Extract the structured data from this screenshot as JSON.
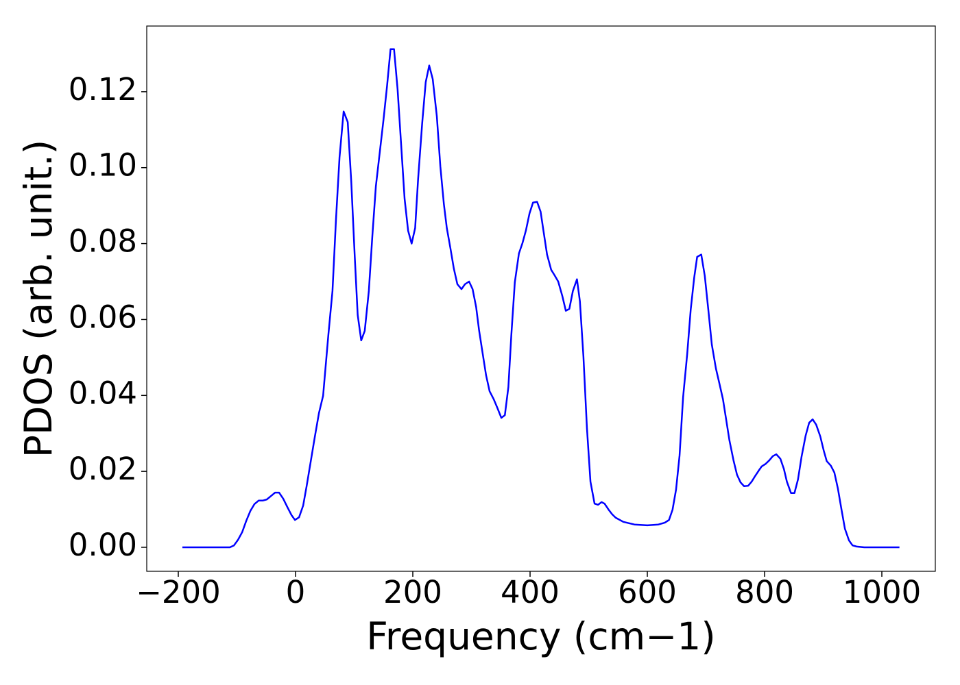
{
  "chart_data": {
    "type": "line",
    "xlabel": "Frequency (cm−1)",
    "ylabel": "PDOS (arb. unit.)",
    "xlim": [
      -253.8,
      1091.2
    ],
    "ylim": [
      -0.00632,
      0.1373
    ],
    "xticks": [
      {
        "value": -200,
        "label": "−200"
      },
      0,
      200,
      400,
      600,
      800,
      1000
    ],
    "yticks": [
      {
        "value": 0,
        "label": "0.00"
      },
      {
        "value": 0.02,
        "label": "0.02"
      },
      {
        "value": 0.04,
        "label": "0.04"
      },
      {
        "value": 0.06,
        "label": "0.06"
      },
      {
        "value": 0.08,
        "label": "0.08"
      },
      {
        "value": 0.1,
        "label": "0.10"
      },
      {
        "value": 0.12,
        "label": "0.12"
      }
    ],
    "series": [
      {
        "color": "#0000ff",
        "x": [
          -193,
          -112,
          -105,
          -98,
          -91,
          -84,
          -77,
          -70,
          -63,
          -56,
          -49,
          -42,
          -35,
          -28,
          -21,
          -14,
          -7,
          -1,
          6,
          13,
          19,
          26,
          33,
          40,
          47,
          49,
          56,
          63,
          69,
          75,
          82,
          89,
          95,
          101,
          106,
          112,
          118,
          125,
          131,
          137,
          144,
          150,
          156,
          162,
          168,
          174,
          180,
          186,
          192,
          198,
          204,
          209,
          216,
          222,
          228,
          234,
          241,
          247,
          253,
          258,
          264,
          270,
          276,
          283,
          289,
          296,
          302,
          308,
          313,
          319,
          325,
          331,
          338,
          344,
          351,
          357,
          363,
          368,
          374,
          381,
          387,
          393,
          399,
          405,
          412,
          418,
          423,
          429,
          436,
          442,
          448,
          455,
          461,
          467,
          473,
          480,
          485,
          491,
          497,
          503,
          510,
          516,
          522,
          527,
          534,
          540,
          546,
          559,
          578,
          600,
          619,
          630,
          637,
          643,
          649,
          655,
          661,
          668,
          674,
          680,
          685,
          692,
          698,
          704,
          710,
          717,
          723,
          729,
          734,
          740,
          747,
          753,
          759,
          765,
          772,
          778,
          784,
          790,
          795,
          802,
          808,
          814,
          820,
          827,
          833,
          838,
          845,
          851,
          857,
          863,
          870,
          876,
          882,
          888,
          895,
          901,
          906,
          913,
          919,
          925,
          931,
          937,
          944,
          950,
          957,
          970,
          1030
        ],
        "values": [
          0,
          0,
          0.0005,
          0.002,
          0.004,
          0.007,
          0.0096,
          0.0114,
          0.0123,
          0.0123,
          0.0126,
          0.0135,
          0.0144,
          0.0144,
          0.0128,
          0.0106,
          0.0085,
          0.0072,
          0.0079,
          0.011,
          0.0162,
          0.0227,
          0.0292,
          0.0354,
          0.0399,
          0.0435,
          0.056,
          0.0675,
          0.0864,
          0.1027,
          0.1148,
          0.112,
          0.0964,
          0.0765,
          0.0612,
          0.0545,
          0.057,
          0.0675,
          0.082,
          0.0951,
          0.1045,
          0.1126,
          0.1214,
          0.1312,
          0.1312,
          0.1207,
          0.1063,
          0.0918,
          0.0834,
          0.08,
          0.0841,
          0.0969,
          0.1117,
          0.1225,
          0.1269,
          0.1233,
          0.1135,
          0.1003,
          0.0904,
          0.0841,
          0.0789,
          0.0734,
          0.0693,
          0.068,
          0.0693,
          0.07,
          0.068,
          0.0633,
          0.0572,
          0.0512,
          0.0453,
          0.0411,
          0.039,
          0.0368,
          0.0341,
          0.0348,
          0.0422,
          0.0558,
          0.0698,
          0.0774,
          0.0801,
          0.0835,
          0.0879,
          0.0908,
          0.091,
          0.0884,
          0.0832,
          0.0771,
          0.0731,
          0.0716,
          0.07,
          0.0662,
          0.0623,
          0.0628,
          0.0675,
          0.0706,
          0.0648,
          0.0503,
          0.0314,
          0.0173,
          0.0115,
          0.0112,
          0.0119,
          0.0115,
          0.0099,
          0.0087,
          0.0078,
          0.0067,
          0.006,
          0.0058,
          0.006,
          0.0065,
          0.0072,
          0.0099,
          0.0152,
          0.0242,
          0.0395,
          0.0509,
          0.0626,
          0.0711,
          0.0765,
          0.0771,
          0.0715,
          0.0626,
          0.0534,
          0.0471,
          0.0431,
          0.039,
          0.0341,
          0.0282,
          0.0229,
          0.0191,
          0.0171,
          0.0161,
          0.0162,
          0.0173,
          0.0188,
          0.0202,
          0.0213,
          0.022,
          0.0229,
          0.024,
          0.0245,
          0.0233,
          0.0206,
          0.0173,
          0.0143,
          0.0143,
          0.0179,
          0.0238,
          0.0294,
          0.0328,
          0.0337,
          0.0323,
          0.0292,
          0.0254,
          0.0227,
          0.0215,
          0.0197,
          0.0155,
          0.0101,
          0.0049,
          0.0018,
          0.0005,
          0.0002,
          0,
          0
        ]
      }
    ]
  }
}
